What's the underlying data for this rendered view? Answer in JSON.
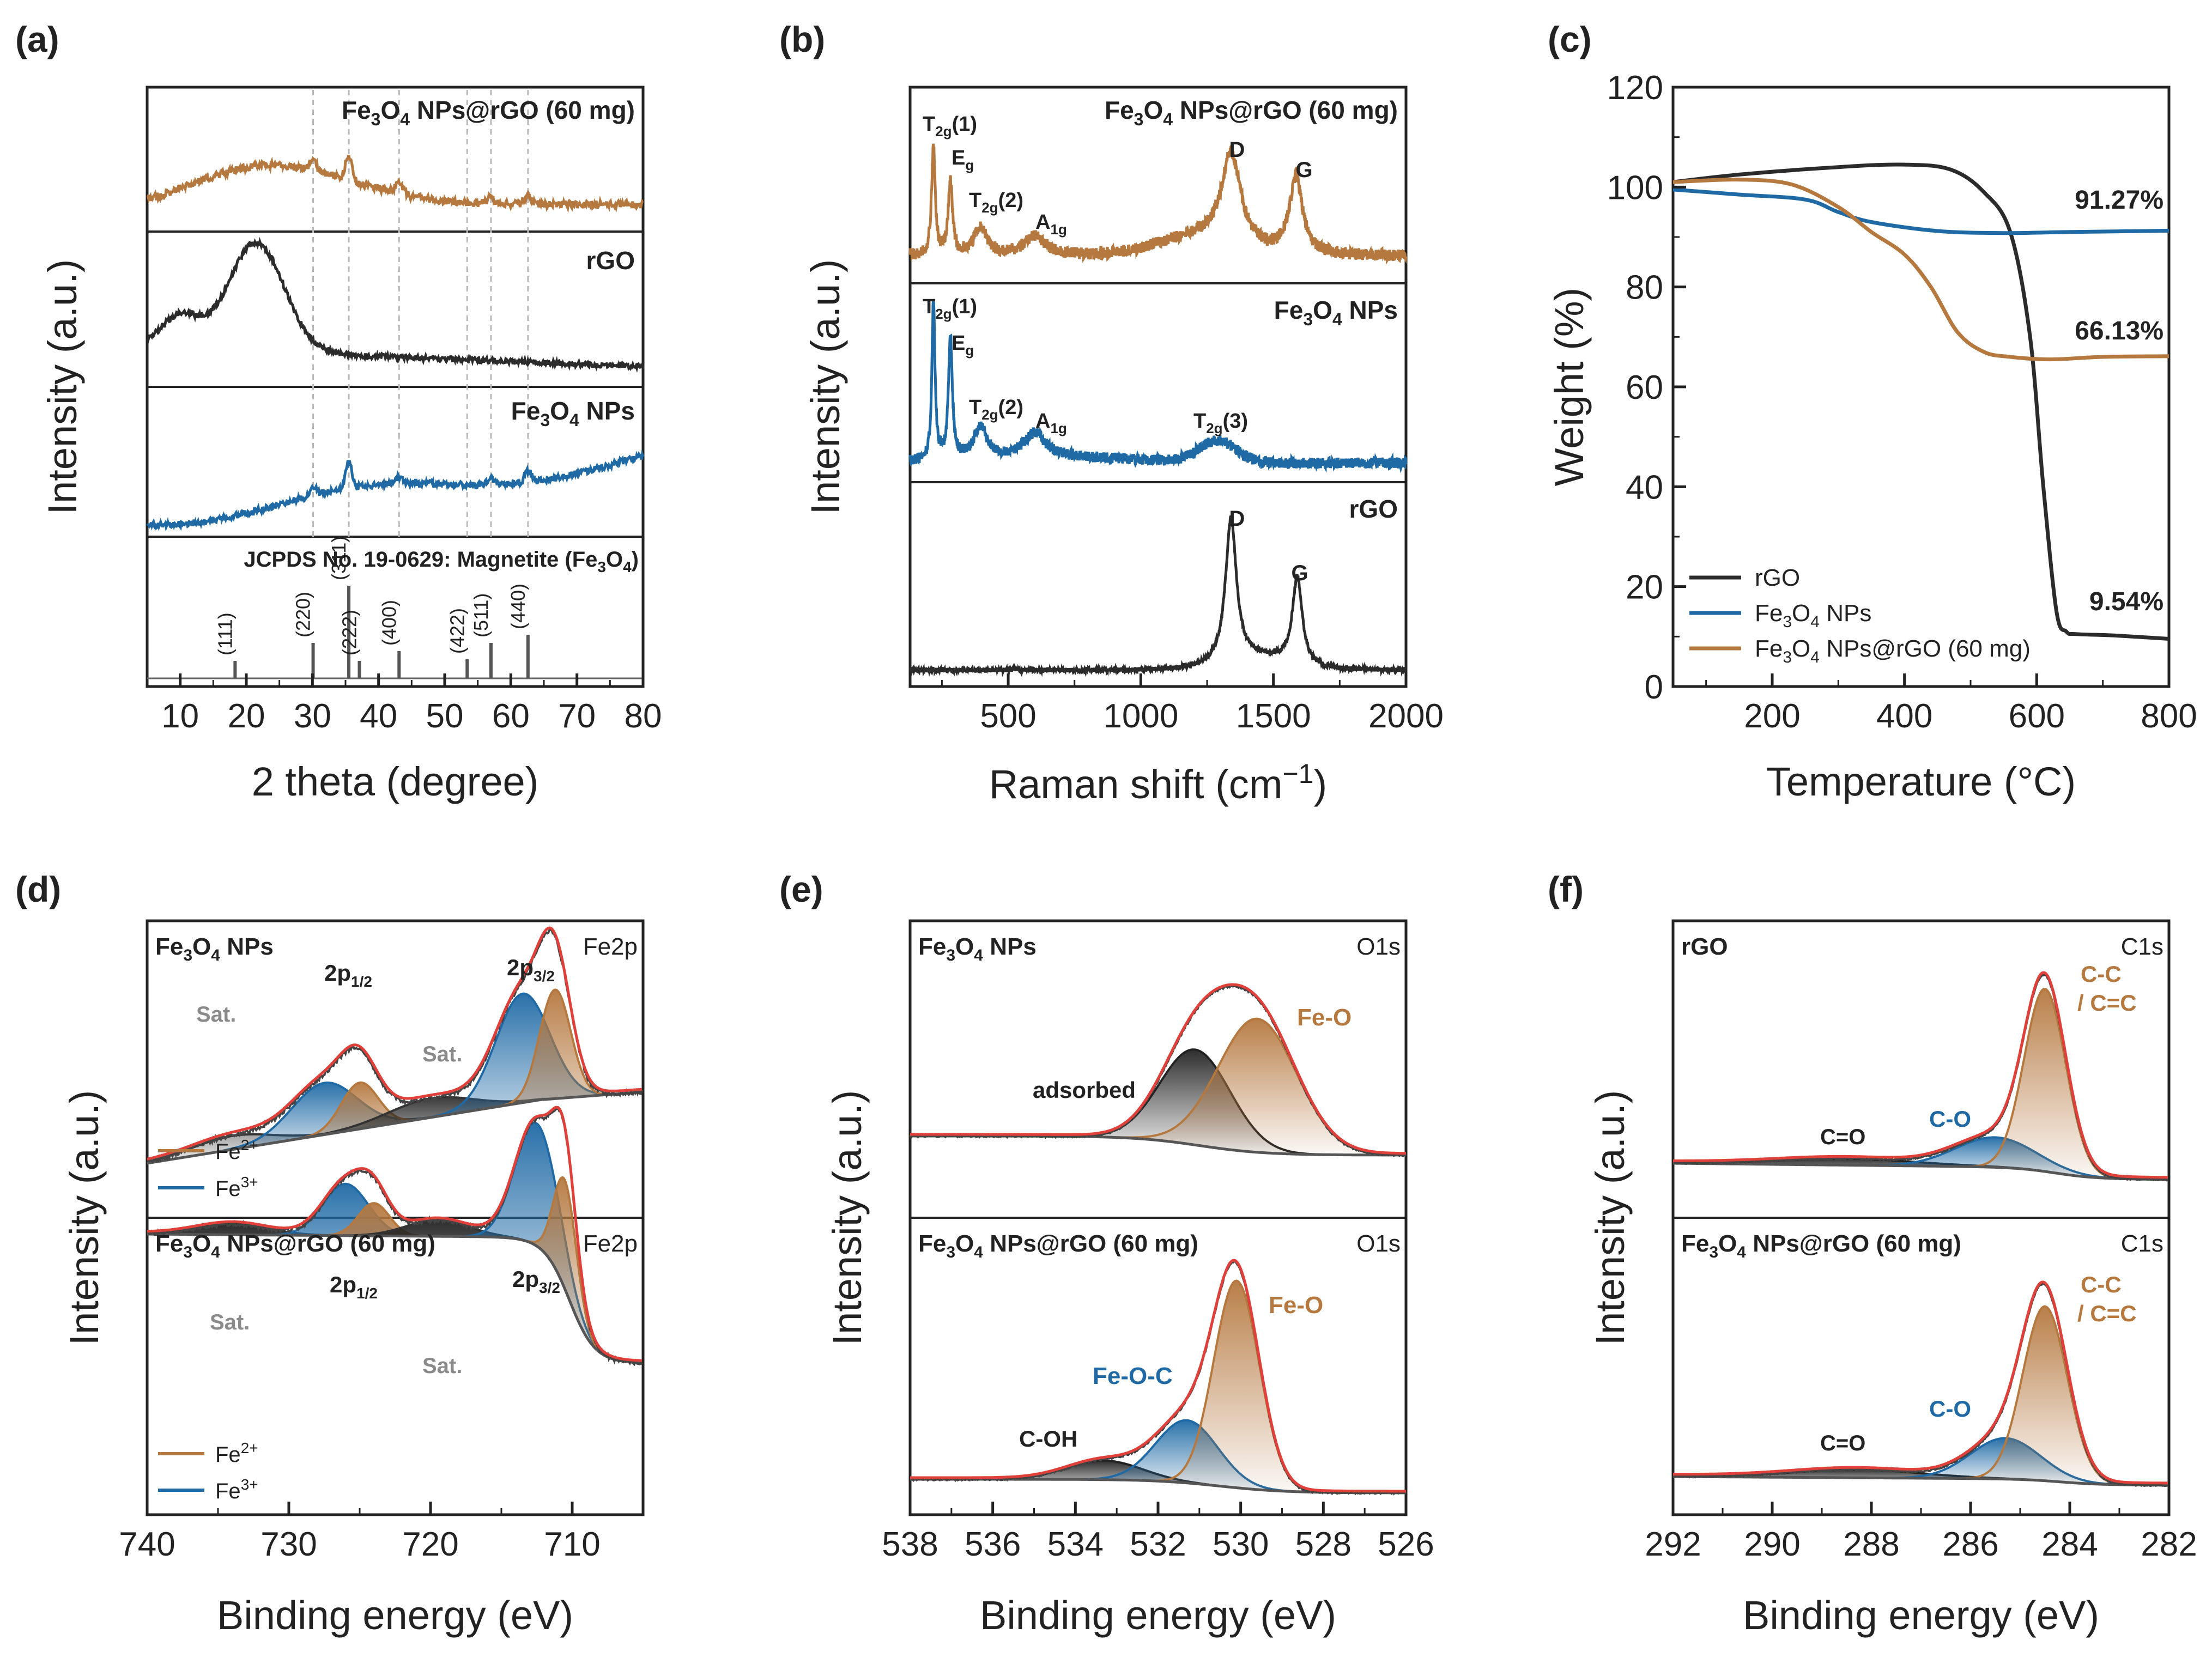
{
  "colors": {
    "brown": "#b5783f",
    "blue": "#1f6aa5",
    "dark": "#2b2b2b",
    "red": "#e0403a",
    "gray": "#8a8a8a",
    "vline": "#b8b8b8"
  },
  "panels": {
    "a": {
      "letter": "(a)",
      "xlabel": "2 theta (degree)",
      "ylabel": "Intensity (a.u.)",
      "xlim": [
        5,
        80
      ],
      "xticks": [
        "10",
        "20",
        "30",
        "40",
        "50",
        "60",
        "70",
        "80"
      ],
      "labels": {
        "comp_main": "Fe",
        "comp_s1": "3",
        "comp_o": "O",
        "comp_s2": "4",
        "comp_rest": " NPs@rGO (60 mg)",
        "rgo": "rGO",
        "np_main": "Fe",
        "np_s1": "3",
        "np_o": "O",
        "np_s2": "4",
        "np_rest": " NPs",
        "jcpds": "JCPDS No. 19-0629: Magnetite (Fe",
        "jcpds_s1": "3",
        "jcpds_o": "O",
        "jcpds_s2": "4",
        "jcpds_end": ")"
      },
      "reflections": [
        {
          "pos": 18.3,
          "height": 0.08,
          "label": "(111)"
        },
        {
          "pos": 30.1,
          "height": 0.3,
          "label": "(220)"
        },
        {
          "pos": 35.5,
          "height": 1.0,
          "label": "(311)"
        },
        {
          "pos": 37.1,
          "height": 0.08,
          "label": "(222)"
        },
        {
          "pos": 43.1,
          "height": 0.2,
          "label": "(400)"
        },
        {
          "pos": 53.4,
          "height": 0.1,
          "label": "(422)"
        },
        {
          "pos": 57.0,
          "height": 0.3,
          "label": "(511)"
        },
        {
          "pos": 62.6,
          "height": 0.4,
          "label": "(440)"
        }
      ],
      "dashed_positions": [
        30.1,
        35.5,
        43.1,
        53.4,
        57.0,
        62.6
      ]
    },
    "b": {
      "letter": "(b)",
      "xlabel": "Raman shift (cm",
      "xlabel_sup": "−1",
      "xlabel_end": ")",
      "ylabel": "Intensity (a.u.)",
      "xlim": [
        130,
        2000
      ],
      "xticks": [
        "500",
        "1000",
        "1500",
        "2000"
      ],
      "labels": {
        "comp_main": "Fe",
        "comp_s1": "3",
        "comp_o": "O",
        "comp_s2": "4",
        "comp_rest": " NPs@rGO (60 mg)",
        "np_main": "Fe",
        "np_s1": "3",
        "np_o": "O",
        "np_s2": "4",
        "np_rest": " NPs",
        "rgo": "rGO",
        "t2g1": "T",
        "t2g1_sub": "2g",
        "t2g1_end": "(1)",
        "eg": "E",
        "eg_sub": "g",
        "t2g2": "T",
        "t2g2_sub": "2g",
        "t2g2_end": "(2)",
        "a1g": "A",
        "a1g_sub": "1g",
        "t2g3": "T",
        "t2g3_sub": "2g",
        "t2g3_end": "(3)",
        "d": "D",
        "g": "G"
      }
    },
    "c": {
      "letter": "(c)",
      "xlabel": "Temperature (°C)",
      "ylabel": "Weight (%)",
      "xlim": [
        50,
        800
      ],
      "ylim": [
        0,
        120
      ],
      "xticks": [
        "200",
        "400",
        "600",
        "800"
      ],
      "yticks": [
        "0",
        "20",
        "40",
        "60",
        "80",
        "100",
        "120"
      ],
      "annotations": [
        "91.27%",
        "66.13%",
        "9.54%"
      ],
      "legend": [
        {
          "name": "rGO"
        },
        {
          "name_main": "Fe",
          "s1": "3",
          "o": "O",
          "s2": "4",
          "rest": " NPs"
        },
        {
          "name_main": "Fe",
          "s1": "3",
          "o": "O",
          "s2": "4",
          "rest": " NPs@rGO (60 mg)"
        }
      ],
      "series": [
        {
          "name": "rGO",
          "points": [
            [
              50,
              101
            ],
            [
              150,
              102.5
            ],
            [
              300,
              104
            ],
            [
              400,
              104.5
            ],
            [
              470,
              103.5
            ],
            [
              520,
              99
            ],
            [
              560,
              91
            ],
            [
              590,
              70
            ],
            [
              610,
              40
            ],
            [
              630,
              15
            ],
            [
              645,
              11
            ],
            [
              660,
              10.5
            ],
            [
              720,
              10.2
            ],
            [
              800,
              9.54
            ]
          ]
        },
        {
          "name": "Fe3O4 NPs",
          "points": [
            [
              50,
              99.5
            ],
            [
              150,
              98.5
            ],
            [
              250,
              97.5
            ],
            [
              300,
              95
            ],
            [
              350,
              93
            ],
            [
              450,
              91.2
            ],
            [
              550,
              90.8
            ],
            [
              650,
              91
            ],
            [
              800,
              91.27
            ]
          ]
        },
        {
          "name": "Fe3O4 NPs@rGO (60 mg)",
          "points": [
            [
              50,
              101
            ],
            [
              150,
              101.5
            ],
            [
              230,
              100.5
            ],
            [
              300,
              96
            ],
            [
              350,
              91
            ],
            [
              400,
              86.5
            ],
            [
              440,
              80
            ],
            [
              480,
              71
            ],
            [
              520,
              67
            ],
            [
              560,
              66
            ],
            [
              620,
              65.5
            ],
            [
              700,
              66
            ],
            [
              800,
              66.13
            ]
          ]
        }
      ]
    },
    "d": {
      "letter": "(d)",
      "xlabel": "Binding energy (eV)",
      "ylabel": "Intensity (a.u.)",
      "xlim": [
        740,
        705
      ],
      "xticks": [
        "740",
        "730",
        "720",
        "710"
      ],
      "top_label": {
        "main": "Fe",
        "s1": "3",
        "o": "O",
        "s2": "4",
        "rest": " NPs",
        "core": "Fe2p"
      },
      "bottom_label": {
        "main": "Fe",
        "s1": "3",
        "o": "O",
        "s2": "4",
        "rest": " NPs@rGO (60 mg)",
        "core": "Fe2p"
      },
      "peaks": {
        "p12": "2p",
        "p12_sub": "1/2",
        "p32": "2p",
        "p32_sub": "3/2",
        "sat": "Sat."
      },
      "legend": {
        "fe2": "Fe",
        "fe2_sup": "2+",
        "fe3": "Fe",
        "fe3_sup": "3+"
      }
    },
    "e": {
      "letter": "(e)",
      "xlabel": "Binding energy (eV)",
      "ylabel": "Intensity (a.u.)",
      "xlim": [
        538,
        526
      ],
      "xticks": [
        "538",
        "536",
        "534",
        "532",
        "530",
        "528",
        "526"
      ],
      "top_label": {
        "main": "Fe",
        "s1": "3",
        "o": "O",
        "s2": "4",
        "rest": " NPs",
        "core": "O1s"
      },
      "bottom_label": {
        "main": "Fe",
        "s1": "3",
        "o": "O",
        "s2": "4",
        "rest": " NPs@rGO (60 mg)",
        "core": "O1s"
      },
      "components": {
        "feo": "Fe-O",
        "adsorbed": "adsorbed",
        "feoc": "Fe-O-C",
        "coh": "C-OH"
      }
    },
    "f": {
      "letter": "(f)",
      "xlabel": "Binding energy (eV)",
      "ylabel": "Intensity (a.u.)",
      "xlim": [
        292,
        282
      ],
      "xticks": [
        "292",
        "290",
        "288",
        "286",
        "284",
        "282"
      ],
      "top_label": {
        "main": "rGO",
        "core": "C1s"
      },
      "bottom_label": {
        "main": "Fe",
        "s1": "3",
        "o": "O",
        "s2": "4",
        "rest": " NPs@rGO (60 mg)",
        "core": "C1s"
      },
      "components": {
        "cc1": "C-C",
        "cc2": "/ C=C",
        "co": "C-O",
        "co2": "C=O"
      }
    }
  }
}
